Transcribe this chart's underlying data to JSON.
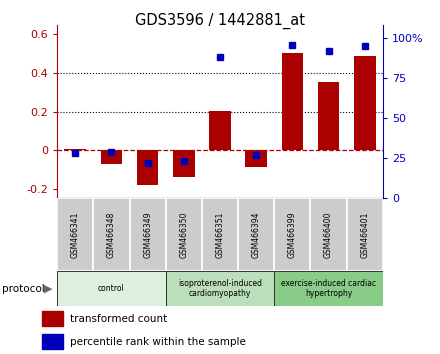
{
  "title": "GDS3596 / 1442881_at",
  "samples": [
    "GSM466341",
    "GSM466348",
    "GSM466349",
    "GSM466350",
    "GSM466351",
    "GSM466394",
    "GSM466399",
    "GSM466400",
    "GSM466401"
  ],
  "transformed_count": [
    0.005,
    -0.07,
    -0.18,
    -0.14,
    0.205,
    -0.09,
    0.505,
    0.355,
    0.49
  ],
  "percentile_rank": [
    28,
    29,
    22,
    23,
    88,
    27,
    96,
    92,
    95
  ],
  "ylim_left": [
    -0.25,
    0.65
  ],
  "ylim_right": [
    0,
    108.33
  ],
  "yticks_left": [
    -0.2,
    0.0,
    0.2,
    0.4,
    0.6
  ],
  "ytick_labels_left": [
    "-0.2",
    "0",
    "0.2",
    "0.4",
    "0.6"
  ],
  "yticks_right": [
    0,
    25,
    50,
    75,
    100
  ],
  "ytick_labels_right": [
    "0",
    "25",
    "50",
    "75",
    "100%"
  ],
  "dotted_lines": [
    0.2,
    0.4
  ],
  "bar_color": "#aa0000",
  "dot_color": "#0000bb",
  "bar_width": 0.6,
  "groups": [
    {
      "label": "control",
      "start": 0,
      "end": 3,
      "color": "#ddf0dd"
    },
    {
      "label": "isoproterenol-induced\ncardiomyopathy",
      "start": 3,
      "end": 6,
      "color": "#bbdebb"
    },
    {
      "label": "exercise-induced cardiac\nhypertrophy",
      "start": 6,
      "end": 9,
      "color": "#88cc88"
    }
  ],
  "legend_items": [
    {
      "label": "transformed count",
      "color": "#aa0000"
    },
    {
      "label": "percentile rank within the sample",
      "color": "#0000bb"
    }
  ]
}
